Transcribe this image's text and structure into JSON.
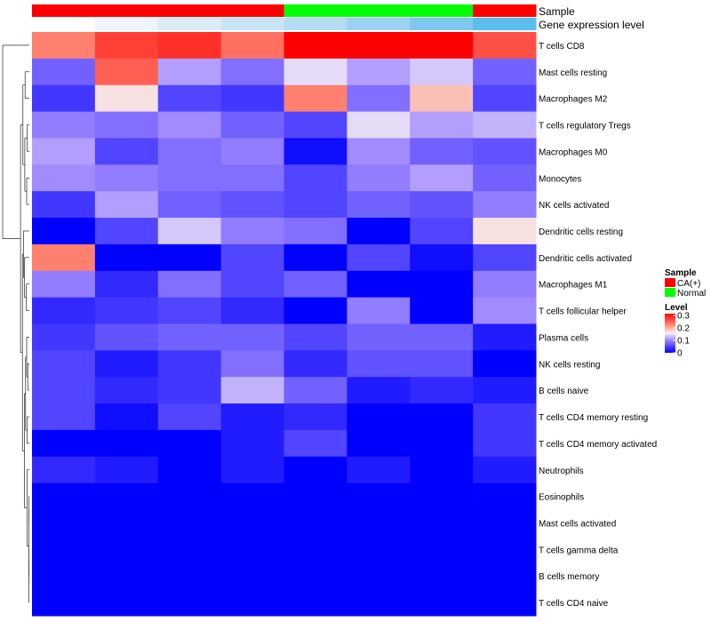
{
  "chart_data": {
    "type": "heatmap",
    "title": "",
    "annotation_labels": {
      "sample": "Sample",
      "gene_expression_level": "Gene expression level"
    },
    "columns": [
      {
        "sample": "CA(+)",
        "gene_expression_color": "#ffffff"
      },
      {
        "sample": "CA(+)",
        "gene_expression_color": "#eef5fb"
      },
      {
        "sample": "CA(+)",
        "gene_expression_color": "#dcecf7"
      },
      {
        "sample": "CA(+)",
        "gene_expression_color": "#c9e4f4"
      },
      {
        "sample": "Normal",
        "gene_expression_color": "#b5dbf1"
      },
      {
        "sample": "Normal",
        "gene_expression_color": "#9cd1ef"
      },
      {
        "sample": "Normal",
        "gene_expression_color": "#7ec7ee"
      },
      {
        "sample": "CA(+)",
        "gene_expression_color": "#5bbdec"
      }
    ],
    "rows": [
      "T cells CD8",
      "Mast cells resting",
      "Macrophages M2",
      "T cells regulatory  Tregs",
      "Macrophages M0",
      "Monocytes",
      "NK cells activated",
      "Dendritic cells resting",
      "Dendritic cells activated",
      "Macrophages M1",
      "T cells follicular helper",
      "Plasma cells",
      "NK cells resting",
      "B cells naive",
      "T cells CD4 memory resting",
      "T cells CD4 memory activated",
      "Neutrophils",
      "Eosinophils",
      "Mast cells activated",
      "T cells gamma delta",
      "B cells memory",
      "T cells CD4 naive"
    ],
    "values": [
      [
        0.22,
        0.26,
        0.27,
        0.23,
        0.3,
        0.3,
        0.3,
        0.25
      ],
      [
        0.07,
        0.24,
        0.11,
        0.08,
        0.14,
        0.11,
        0.13,
        0.07
      ],
      [
        0.04,
        0.16,
        0.05,
        0.04,
        0.22,
        0.08,
        0.18,
        0.05
      ],
      [
        0.09,
        0.08,
        0.1,
        0.07,
        0.05,
        0.14,
        0.11,
        0.12
      ],
      [
        0.11,
        0.05,
        0.08,
        0.09,
        0.01,
        0.1,
        0.07,
        0.06
      ],
      [
        0.1,
        0.09,
        0.08,
        0.08,
        0.05,
        0.09,
        0.11,
        0.07
      ],
      [
        0.04,
        0.11,
        0.07,
        0.06,
        0.05,
        0.07,
        0.06,
        0.09
      ],
      [
        0.0,
        0.05,
        0.13,
        0.09,
        0.08,
        0.0,
        0.05,
        0.16
      ],
      [
        0.22,
        0.0,
        0.0,
        0.05,
        0.0,
        0.05,
        0.01,
        0.05
      ],
      [
        0.09,
        0.03,
        0.08,
        0.05,
        0.07,
        0.0,
        0.0,
        0.09
      ],
      [
        0.03,
        0.04,
        0.05,
        0.03,
        0.0,
        0.09,
        0.0,
        0.1
      ],
      [
        0.04,
        0.06,
        0.07,
        0.07,
        0.05,
        0.07,
        0.07,
        0.02
      ],
      [
        0.05,
        0.02,
        0.04,
        0.08,
        0.03,
        0.06,
        0.06,
        0.0
      ],
      [
        0.05,
        0.03,
        0.04,
        0.12,
        0.07,
        0.02,
        0.03,
        0.02
      ],
      [
        0.05,
        0.01,
        0.05,
        0.02,
        0.03,
        0.0,
        0.0,
        0.04
      ],
      [
        0.0,
        0.0,
        0.0,
        0.02,
        0.05,
        0.0,
        0.0,
        0.04
      ],
      [
        0.03,
        0.02,
        0.0,
        0.02,
        0.0,
        0.02,
        0.0,
        0.02
      ],
      [
        0.0,
        0.0,
        0.0,
        0.0,
        0.0,
        0.0,
        0.0,
        0.0
      ],
      [
        0.0,
        0.0,
        0.0,
        0.0,
        0.0,
        0.0,
        0.0,
        0.0
      ],
      [
        0.0,
        0.0,
        0.0,
        0.0,
        0.0,
        0.0,
        0.0,
        0.0
      ],
      [
        0.0,
        0.0,
        0.0,
        0.0,
        0.0,
        0.0,
        0.0,
        0.0
      ],
      [
        0.0,
        0.0,
        0.0,
        0.0,
        0.0,
        0.0,
        0.0,
        0.0
      ]
    ],
    "color_scale": {
      "min": 0,
      "max": 0.3,
      "stops": [
        {
          "value": 0,
          "color": "#0000ff"
        },
        {
          "value": 0.1,
          "color": "#a28aff"
        },
        {
          "value": 0.15,
          "color": "#f5f0f5"
        },
        {
          "value": 0.2,
          "color": "#ffa08a"
        },
        {
          "value": 0.3,
          "color": "#ff0000"
        }
      ]
    },
    "legend": {
      "position": "right",
      "sample_title": "Sample",
      "sample_entries": [
        {
          "label": "CA(+)",
          "color": "#ff0000"
        },
        {
          "label": "Normal",
          "color": "#00ff00"
        }
      ],
      "level_title": "Level",
      "level_ticks": [
        "0.3",
        "0.2",
        "0.1",
        "0"
      ]
    },
    "row_dendrogram": true
  }
}
